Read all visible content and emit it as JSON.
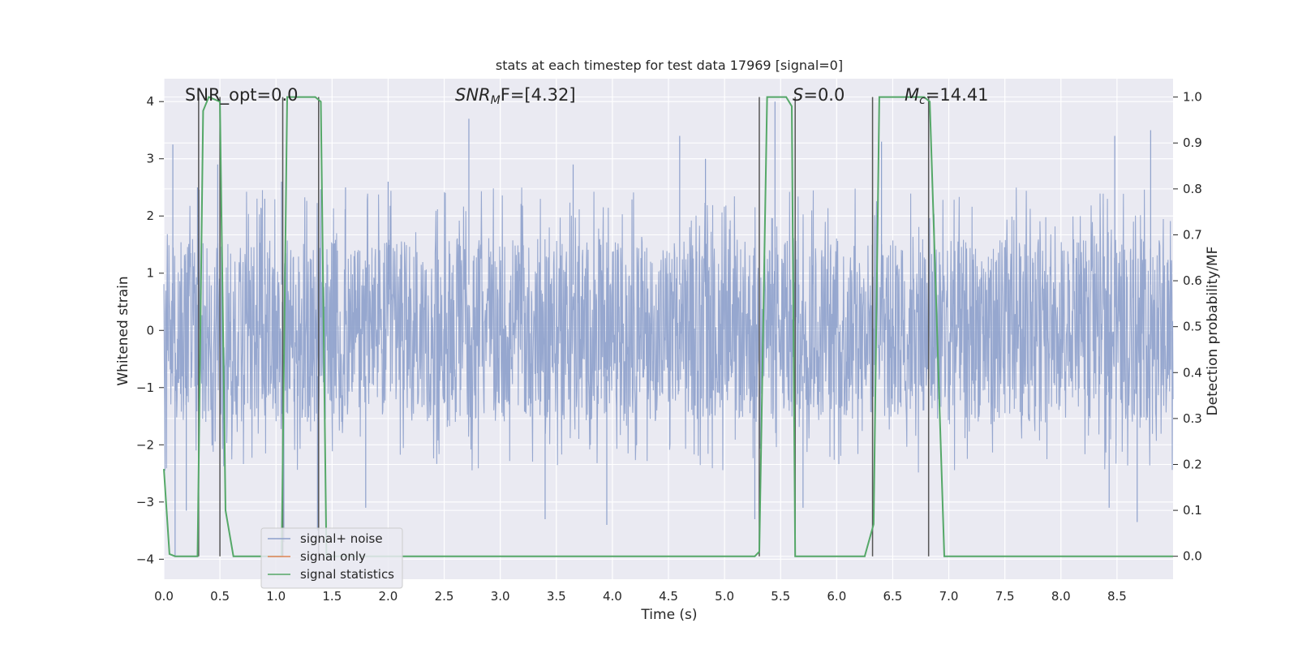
{
  "chart_data": {
    "type": "line",
    "title": "stats at each timestep for test data 17969 [signal=0]",
    "xlabel": "Time (s)",
    "ylabel_left": "Whitened strain",
    "ylabel_right": "Detection probability/MF",
    "xlim": [
      0.0,
      9.0
    ],
    "ylim_left": [
      -4.35,
      4.4
    ],
    "ylim_right": [
      -0.05,
      1.04
    ],
    "x_ticks": [
      "0.0",
      "0.5",
      "1.0",
      "1.5",
      "2.0",
      "2.5",
      "3.0",
      "3.5",
      "4.0",
      "4.5",
      "5.0",
      "5.5",
      "6.0",
      "6.5",
      "7.0",
      "7.5",
      "8.0",
      "8.5"
    ],
    "y_left_ticks": [
      "4",
      "3",
      "2",
      "1",
      "0",
      "−1",
      "−2",
      "−3",
      "−4"
    ],
    "y_right_ticks": [
      "1.0",
      "0.9",
      "0.8",
      "0.7",
      "0.6",
      "0.5",
      "0.4",
      "0.3",
      "0.2",
      "0.1",
      "0.0"
    ],
    "grid": true,
    "legend_position": "lower-left",
    "annotations": {
      "snr_opt": "SNR_opt=0.0",
      "snr_mf": "SNR",
      "snr_mf_sub": "M",
      "snr_mf_tail": "F=[4.32]",
      "s": "S",
      "s_tail": "=0.0",
      "mc": "M",
      "mc_sub": "c",
      "mc_tail": "=14.41"
    },
    "series": [
      {
        "name": "signal+ noise",
        "color": "#8da0cb",
        "axis": "left",
        "description_level": "noise band roughly ±1.6 with spikes to ±3.5",
        "spike_peaks": [
          {
            "x": 0.08,
            "y": 3.25
          },
          {
            "x": 0.3,
            "y": 2.5
          },
          {
            "x": 0.48,
            "y": 2.9
          },
          {
            "x": 0.9,
            "y": 2.3
          },
          {
            "x": 1.05,
            "y": 2.6
          },
          {
            "x": 1.62,
            "y": 2.5
          },
          {
            "x": 2.0,
            "y": 2.6
          },
          {
            "x": 2.72,
            "y": 3.7
          },
          {
            "x": 3.65,
            "y": 2.9
          },
          {
            "x": 4.6,
            "y": 3.4
          },
          {
            "x": 4.83,
            "y": 3.0
          },
          {
            "x": 5.45,
            "y": 4.0
          },
          {
            "x": 6.4,
            "y": 3.3
          },
          {
            "x": 8.48,
            "y": 3.4
          },
          {
            "x": 8.8,
            "y": 3.5
          }
        ],
        "trough_peaks": [
          {
            "x": 0.1,
            "y": -3.95
          },
          {
            "x": 0.2,
            "y": -3.15
          },
          {
            "x": 1.07,
            "y": -3.7
          },
          {
            "x": 1.37,
            "y": -3.5
          },
          {
            "x": 1.8,
            "y": -3.1
          },
          {
            "x": 3.4,
            "y": -3.3
          },
          {
            "x": 3.95,
            "y": -3.4
          },
          {
            "x": 5.27,
            "y": -3.3
          },
          {
            "x": 5.7,
            "y": -3.1
          },
          {
            "x": 8.43,
            "y": -3.1
          },
          {
            "x": 8.68,
            "y": -3.35
          }
        ]
      },
      {
        "name": "signal only",
        "color": "#dd8452",
        "axis": "left",
        "x": [
          0.0,
          9.0
        ],
        "y": [
          0.0,
          0.0
        ]
      },
      {
        "name": "signal statistics",
        "color": "#55a868",
        "axis": "right",
        "x": [
          0.0,
          0.05,
          0.1,
          0.3,
          0.35,
          0.4,
          0.5,
          0.55,
          0.62,
          0.9,
          1.05,
          1.1,
          1.35,
          1.4,
          1.45,
          3.0,
          5.27,
          5.31,
          5.38,
          5.55,
          5.6,
          5.63,
          5.68,
          6.2,
          6.25,
          6.33,
          6.38,
          6.78,
          6.83,
          6.96,
          9.0
        ],
        "y": [
          0.19,
          0.005,
          0.0,
          0.0,
          0.97,
          1.0,
          0.99,
          0.1,
          0.0,
          0.0,
          0.0,
          1.0,
          1.0,
          0.99,
          0.0,
          0.0,
          0.0,
          0.01,
          1.0,
          1.0,
          0.98,
          0.0,
          0.0,
          0.0,
          0.0,
          0.07,
          1.0,
          1.0,
          0.99,
          0.0,
          0.0
        ]
      }
    ],
    "vertical_lines_x": [
      0.31,
      0.5,
      1.06,
      1.38,
      5.31,
      5.63,
      6.32,
      6.82
    ]
  },
  "colors": {
    "plot_background": "#eaeaf2",
    "grid": "#ffffff",
    "vertical_line": "#555555"
  }
}
